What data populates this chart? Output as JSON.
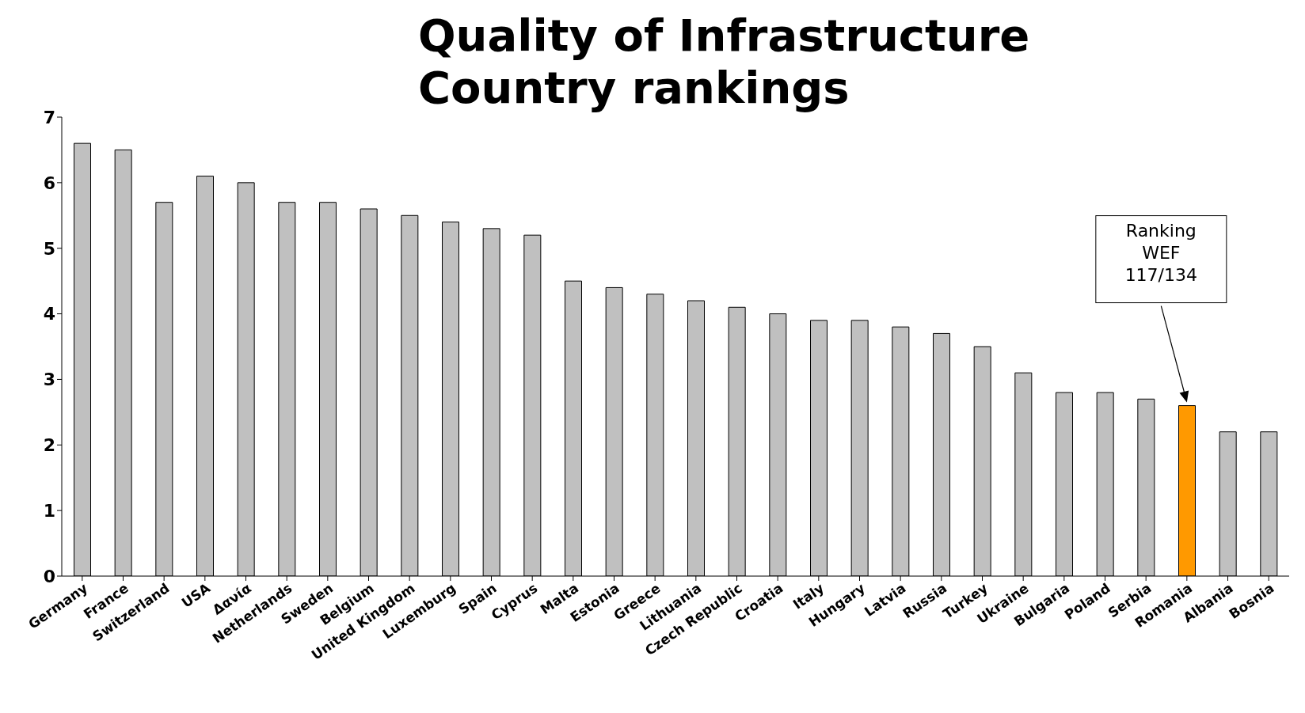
{
  "chart_data": {
    "type": "bar",
    "title": "Quality of Infrastructure",
    "subtitle": "Country rankings",
    "categories": [
      "Germany",
      "France",
      "Switzerland",
      "USA",
      "Δανία",
      "Netherlands",
      "Sweden",
      "Belgium",
      "United Kingdom",
      "Luxemburg",
      "Spain",
      "Cyprus",
      "Malta",
      "Estonia",
      "Greece",
      "Lithuania",
      "Czech Republic",
      "Croatia",
      "Italy",
      "Hungary",
      "Latvia",
      "Russia",
      "Turkey",
      "Ukraine",
      "Bulgaria",
      "Poland",
      "Serbia",
      "Romania",
      "Albania",
      "Bosnia"
    ],
    "values": [
      6.6,
      6.5,
      5.7,
      6.1,
      6.0,
      5.7,
      5.7,
      5.6,
      5.5,
      5.4,
      5.3,
      5.2,
      4.5,
      4.4,
      4.3,
      4.2,
      4.1,
      4.0,
      3.9,
      3.9,
      3.8,
      3.7,
      3.5,
      3.1,
      2.8,
      2.8,
      2.7,
      2.6,
      2.2,
      2.2
    ],
    "colors": [
      "#c0c0c0",
      "#c0c0c0",
      "#c0c0c0",
      "#c0c0c0",
      "#c0c0c0",
      "#c0c0c0",
      "#c0c0c0",
      "#c0c0c0",
      "#c0c0c0",
      "#c0c0c0",
      "#c0c0c0",
      "#c0c0c0",
      "#c0c0c0",
      "#c0c0c0",
      "#c0c0c0",
      "#c0c0c0",
      "#c0c0c0",
      "#c0c0c0",
      "#c0c0c0",
      "#c0c0c0",
      "#c0c0c0",
      "#c0c0c0",
      "#c0c0c0",
      "#c0c0c0",
      "#c0c0c0",
      "#c0c0c0",
      "#c0c0c0",
      "#ff9900",
      "#c0c0c0",
      "#c0c0c0"
    ],
    "ylim": [
      0,
      7
    ],
    "yticks": [
      0,
      1,
      2,
      3,
      4,
      5,
      6,
      7
    ],
    "grid": false,
    "legend": false,
    "annotations": [
      "Ranking WEF 117/134"
    ]
  }
}
